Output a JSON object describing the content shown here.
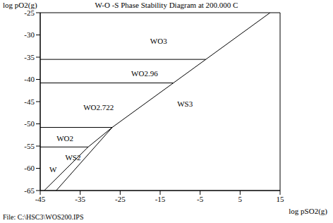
{
  "chart_data": {
    "type": "line",
    "title": "W-O -S Phase Stability Diagram at 200.000 C",
    "x_label": "log pSO2(g)",
    "y_label": "log pO2(g)",
    "footer": "File: C:\\HSC3\\WOS200.IPS",
    "color": "#000000",
    "xlim": [
      -45,
      15
    ],
    "xticks": [
      -45,
      -35,
      -25,
      -15,
      -5,
      5,
      15
    ],
    "ylim": [
      -65,
      -25
    ],
    "yticks": [
      -65,
      -60,
      -55,
      -50,
      -45,
      -40,
      -35,
      -30,
      -25
    ],
    "boundaries": [
      {
        "x": [
          -45,
          -3.6
        ],
        "y": [
          -35.5,
          -35.5
        ]
      },
      {
        "x": [
          -45,
          -11.7
        ],
        "y": [
          -40.8,
          -40.8
        ]
      },
      {
        "x": [
          -45,
          -27
        ],
        "y": [
          -50.8,
          -50.8
        ]
      },
      {
        "x": [
          -45,
          -33
        ],
        "y": [
          -55.2,
          -55.2
        ]
      },
      {
        "x": [
          -27,
          12.5
        ],
        "y": [
          -50.8,
          -25
        ]
      },
      {
        "x": [
          -27,
          -33
        ],
        "y": [
          -50.8,
          -55.2
        ]
      },
      {
        "x": [
          -33,
          -44
        ],
        "y": [
          -55.2,
          -65
        ]
      },
      {
        "x": [
          -27,
          -41
        ],
        "y": [
          -50.8,
          -65
        ]
      }
    ],
    "annotations": [
      {
        "text": "WO3",
        "x": -15.4,
        "y": -31.3
      },
      {
        "text": "WO2.96",
        "x": -18.9,
        "y": -38.6
      },
      {
        "text": "WO2.722",
        "x": -30.4,
        "y": -46.3
      },
      {
        "text": "WS3",
        "x": -8.8,
        "y": -45.5
      },
      {
        "text": "WO2",
        "x": -38.8,
        "y": -53.3
      },
      {
        "text": "WS2",
        "x": -36.8,
        "y": -57.6
      },
      {
        "text": "W",
        "x": -41.8,
        "y": -60.2
      }
    ]
  }
}
